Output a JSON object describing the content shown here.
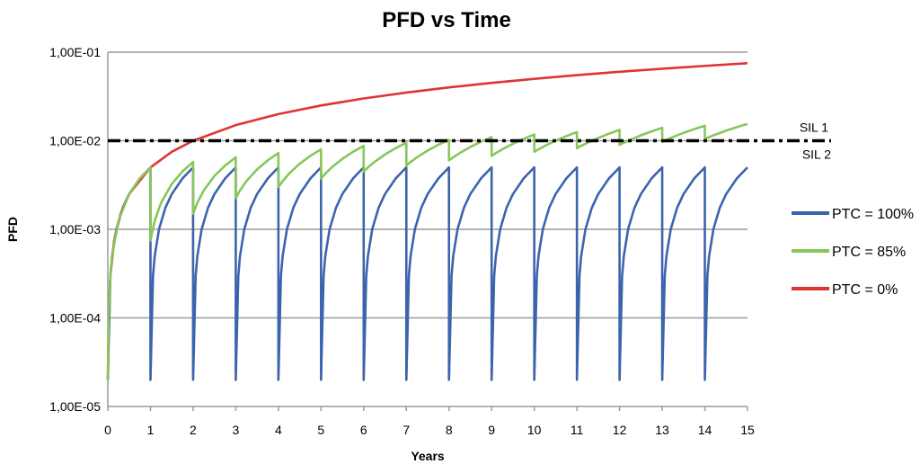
{
  "chart_data": {
    "type": "line",
    "title": "PFD vs Time",
    "xlabel": "Years",
    "ylabel": "PFD",
    "xlim": [
      0,
      15
    ],
    "ylim": [
      1e-05,
      0.1
    ],
    "y_scale": "log",
    "x_ticks": [
      "0",
      "1",
      "2",
      "3",
      "4",
      "5",
      "6",
      "7",
      "8",
      "9",
      "10",
      "11",
      "12",
      "13",
      "14",
      "15"
    ],
    "y_ticks": [
      {
        "value": 0.1,
        "label": "1,00E-01"
      },
      {
        "value": 0.01,
        "label": "1,00E-02"
      },
      {
        "value": 0.001,
        "label": "1,00E-03"
      },
      {
        "value": 0.0001,
        "label": "1,00E-04"
      },
      {
        "value": 1e-05,
        "label": "1,00E-05"
      }
    ],
    "grid": "horizontal",
    "legend_placement": "right",
    "threshold": {
      "value": 0.01,
      "label_above": "SIL 1",
      "label_below": "SIL 2",
      "color": "#000000",
      "style": "dash-dot"
    },
    "series": [
      {
        "name": "PTC = 100%",
        "color": "#3b64ad",
        "points": [
          [
            0,
            2e-05
          ],
          [
            0.06,
            0.0003
          ],
          [
            0.1,
            0.0005
          ],
          [
            0.2,
            0.001
          ],
          [
            0.35,
            0.00175
          ],
          [
            0.5,
            0.0025
          ],
          [
            0.75,
            0.00375
          ],
          [
            1,
            0.005
          ],
          [
            1,
            2e-05
          ],
          [
            1.06,
            0.0003
          ],
          [
            1.1,
            0.0005
          ],
          [
            1.2,
            0.001
          ],
          [
            1.35,
            0.00175
          ],
          [
            1.5,
            0.0025
          ],
          [
            1.75,
            0.00375
          ],
          [
            2,
            0.005
          ],
          [
            2,
            2e-05
          ],
          [
            2.06,
            0.0003
          ],
          [
            2.1,
            0.0005
          ],
          [
            2.2,
            0.001
          ],
          [
            2.35,
            0.00175
          ],
          [
            2.5,
            0.0025
          ],
          [
            2.75,
            0.00375
          ],
          [
            3,
            0.005
          ],
          [
            3,
            2e-05
          ],
          [
            3.06,
            0.0003
          ],
          [
            3.1,
            0.0005
          ],
          [
            3.2,
            0.001
          ],
          [
            3.35,
            0.00175
          ],
          [
            3.5,
            0.0025
          ],
          [
            3.75,
            0.00375
          ],
          [
            4,
            0.005
          ],
          [
            4,
            2e-05
          ],
          [
            4.06,
            0.0003
          ],
          [
            4.1,
            0.0005
          ],
          [
            4.2,
            0.001
          ],
          [
            4.35,
            0.00175
          ],
          [
            4.5,
            0.0025
          ],
          [
            4.75,
            0.00375
          ],
          [
            5,
            0.005
          ],
          [
            5,
            2e-05
          ],
          [
            5.06,
            0.0003
          ],
          [
            5.1,
            0.0005
          ],
          [
            5.2,
            0.001
          ],
          [
            5.35,
            0.00175
          ],
          [
            5.5,
            0.0025
          ],
          [
            5.75,
            0.00375
          ],
          [
            6,
            0.005
          ],
          [
            6,
            2e-05
          ],
          [
            6.06,
            0.0003
          ],
          [
            6.1,
            0.0005
          ],
          [
            6.2,
            0.001
          ],
          [
            6.35,
            0.00175
          ],
          [
            6.5,
            0.0025
          ],
          [
            6.75,
            0.00375
          ],
          [
            7,
            0.005
          ],
          [
            7,
            2e-05
          ],
          [
            7.06,
            0.0003
          ],
          [
            7.1,
            0.0005
          ],
          [
            7.2,
            0.001
          ],
          [
            7.35,
            0.00175
          ],
          [
            7.5,
            0.0025
          ],
          [
            7.75,
            0.00375
          ],
          [
            8,
            0.005
          ],
          [
            8,
            2e-05
          ],
          [
            8.06,
            0.0003
          ],
          [
            8.1,
            0.0005
          ],
          [
            8.2,
            0.001
          ],
          [
            8.35,
            0.00175
          ],
          [
            8.5,
            0.0025
          ],
          [
            8.75,
            0.00375
          ],
          [
            9,
            0.005
          ],
          [
            9,
            2e-05
          ],
          [
            9.06,
            0.0003
          ],
          [
            9.1,
            0.0005
          ],
          [
            9.2,
            0.001
          ],
          [
            9.35,
            0.00175
          ],
          [
            9.5,
            0.0025
          ],
          [
            9.75,
            0.00375
          ],
          [
            10,
            0.005
          ],
          [
            10,
            2e-05
          ],
          [
            10.06,
            0.0003
          ],
          [
            10.1,
            0.0005
          ],
          [
            10.2,
            0.001
          ],
          [
            10.35,
            0.00175
          ],
          [
            10.5,
            0.0025
          ],
          [
            10.75,
            0.00375
          ],
          [
            11,
            0.005
          ],
          [
            11,
            2e-05
          ],
          [
            11.06,
            0.0003
          ],
          [
            11.1,
            0.0005
          ],
          [
            11.2,
            0.001
          ],
          [
            11.35,
            0.00175
          ],
          [
            11.5,
            0.0025
          ],
          [
            11.75,
            0.00375
          ],
          [
            12,
            0.005
          ],
          [
            12,
            2e-05
          ],
          [
            12.06,
            0.0003
          ],
          [
            12.1,
            0.0005
          ],
          [
            12.2,
            0.001
          ],
          [
            12.35,
            0.00175
          ],
          [
            12.5,
            0.0025
          ],
          [
            12.75,
            0.00375
          ],
          [
            13,
            0.005
          ],
          [
            13,
            2e-05
          ],
          [
            13.06,
            0.0003
          ],
          [
            13.1,
            0.0005
          ],
          [
            13.2,
            0.001
          ],
          [
            13.35,
            0.00175
          ],
          [
            13.5,
            0.0025
          ],
          [
            13.75,
            0.00375
          ],
          [
            14,
            0.005
          ],
          [
            14,
            2e-05
          ],
          [
            14.06,
            0.0003
          ],
          [
            14.1,
            0.0005
          ],
          [
            14.2,
            0.001
          ],
          [
            14.35,
            0.00175
          ],
          [
            14.5,
            0.0025
          ],
          [
            14.75,
            0.00375
          ],
          [
            15,
            0.005
          ]
        ]
      },
      {
        "name": "PTC = 0%",
        "color": "#e03434",
        "points": [
          [
            0.004,
            2e-05
          ],
          [
            0.02,
            0.0001
          ],
          [
            0.06,
            0.0003
          ],
          [
            0.15,
            0.00075
          ],
          [
            0.3,
            0.0015
          ],
          [
            0.5,
            0.0025
          ],
          [
            1,
            0.005
          ],
          [
            1.5,
            0.0075
          ],
          [
            2,
            0.01
          ],
          [
            3,
            0.015
          ],
          [
            4,
            0.02
          ],
          [
            5,
            0.025
          ],
          [
            6,
            0.03
          ],
          [
            7,
            0.035
          ],
          [
            8,
            0.04
          ],
          [
            9,
            0.045
          ],
          [
            10,
            0.05
          ],
          [
            11,
            0.055
          ],
          [
            12,
            0.06
          ],
          [
            13,
            0.065
          ],
          [
            14,
            0.07
          ],
          [
            15,
            0.075
          ]
        ]
      },
      {
        "name": "PTC = 85%",
        "color": "#86c75a",
        "points": [
          [
            0,
            2e-05
          ],
          [
            0.02,
            0.0001
          ],
          [
            0.06,
            0.0003
          ],
          [
            0.1,
            0.0005
          ],
          [
            0.25,
            0.00125
          ],
          [
            0.5,
            0.0025
          ],
          [
            0.75,
            0.00375
          ],
          [
            1,
            0.005
          ],
          [
            1,
            0.00075
          ],
          [
            1.1,
            0.00125
          ],
          [
            1.25,
            0.002
          ],
          [
            1.5,
            0.00325
          ],
          [
            1.75,
            0.0045
          ],
          [
            2,
            0.00575
          ],
          [
            2,
            0.0015
          ],
          [
            2.1,
            0.002
          ],
          [
            2.25,
            0.00275
          ],
          [
            2.5,
            0.004
          ],
          [
            2.75,
            0.00525
          ],
          [
            3,
            0.0065
          ],
          [
            3,
            0.00225
          ],
          [
            3.1,
            0.00275
          ],
          [
            3.25,
            0.0035
          ],
          [
            3.5,
            0.00475
          ],
          [
            3.75,
            0.006
          ],
          [
            4,
            0.00725
          ],
          [
            4,
            0.003
          ],
          [
            4.1,
            0.0035
          ],
          [
            4.25,
            0.00425
          ],
          [
            4.5,
            0.0055
          ],
          [
            4.75,
            0.00675
          ],
          [
            5,
            0.008
          ],
          [
            5,
            0.00375
          ],
          [
            5.1,
            0.00425
          ],
          [
            5.25,
            0.005
          ],
          [
            5.5,
            0.00625
          ],
          [
            5.75,
            0.0075
          ],
          [
            6,
            0.00875
          ],
          [
            6,
            0.0045
          ],
          [
            6.1,
            0.005
          ],
          [
            6.25,
            0.00575
          ],
          [
            6.5,
            0.007
          ],
          [
            6.75,
            0.00825
          ],
          [
            7,
            0.0095
          ],
          [
            7,
            0.00525
          ],
          [
            7.1,
            0.00575
          ],
          [
            7.25,
            0.0065
          ],
          [
            7.5,
            0.00775
          ],
          [
            7.75,
            0.009
          ],
          [
            8,
            0.01025
          ],
          [
            8,
            0.006
          ],
          [
            8.1,
            0.0065
          ],
          [
            8.25,
            0.00725
          ],
          [
            8.5,
            0.0085
          ],
          [
            8.75,
            0.00975
          ],
          [
            9,
            0.011
          ],
          [
            9,
            0.00675
          ],
          [
            9.1,
            0.00725
          ],
          [
            9.25,
            0.008
          ],
          [
            9.5,
            0.00925
          ],
          [
            9.75,
            0.0105
          ],
          [
            10,
            0.01175
          ],
          [
            10,
            0.0075
          ],
          [
            10.1,
            0.008
          ],
          [
            10.25,
            0.00875
          ],
          [
            10.5,
            0.01
          ],
          [
            10.75,
            0.01125
          ],
          [
            11,
            0.0125
          ],
          [
            11,
            0.00825
          ],
          [
            11.1,
            0.00875
          ],
          [
            11.25,
            0.0095
          ],
          [
            11.5,
            0.01075
          ],
          [
            11.75,
            0.012
          ],
          [
            12,
            0.01325
          ],
          [
            12,
            0.009
          ],
          [
            12.1,
            0.0095
          ],
          [
            12.25,
            0.01025
          ],
          [
            12.5,
            0.0115
          ],
          [
            12.75,
            0.01275
          ],
          [
            13,
            0.014
          ],
          [
            13,
            0.00975
          ],
          [
            13.1,
            0.01025
          ],
          [
            13.25,
            0.011
          ],
          [
            13.5,
            0.01225
          ],
          [
            13.75,
            0.0135
          ],
          [
            14,
            0.01475
          ],
          [
            14,
            0.0105
          ],
          [
            14.1,
            0.011
          ],
          [
            14.25,
            0.01175
          ],
          [
            14.5,
            0.013
          ],
          [
            14.75,
            0.01425
          ],
          [
            15,
            0.0155
          ]
        ]
      }
    ],
    "legend_order": [
      "PTC = 100%",
      "PTC = 85%",
      "PTC = 0%"
    ]
  }
}
